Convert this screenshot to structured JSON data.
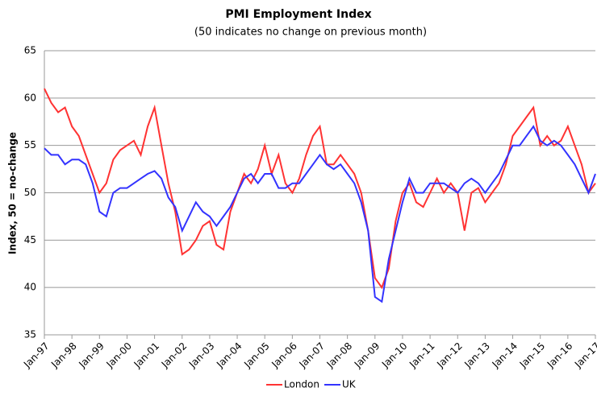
{
  "chart_data": {
    "type": "line",
    "title": "PMI Employment Index",
    "subtitle": "(50 indicates no change on previous month)",
    "y_label": "Index, 50 = no-change",
    "categories": [
      "Jan-97",
      null,
      null,
      null,
      "Jan-98",
      null,
      null,
      null,
      "Jan-99",
      null,
      null,
      null,
      "Jan-00",
      null,
      null,
      null,
      "Jan-01",
      null,
      null,
      null,
      "Jan-02",
      null,
      null,
      null,
      "Jan-03",
      null,
      null,
      null,
      "Jan-04",
      null,
      null,
      null,
      "Jan-05",
      null,
      null,
      null,
      "Jan-06",
      null,
      null,
      null,
      "Jan-07",
      null,
      null,
      null,
      "Jan-08",
      null,
      null,
      null,
      "Jan-09",
      null,
      null,
      null,
      "Jan-10",
      null,
      null,
      null,
      "Jan-11",
      null,
      null,
      null,
      "Jan-12",
      null,
      null,
      null,
      "Jan-13",
      null,
      null,
      null,
      "Jan-14",
      null,
      null,
      null,
      "Jan-15",
      null,
      null,
      null,
      "Jan-16",
      null,
      null,
      null,
      "Jan-17"
    ],
    "series": [
      {
        "name": "London",
        "color": "#ff3333",
        "values": [
          61,
          59.5,
          58.5,
          59,
          57,
          56,
          54,
          52,
          50,
          51,
          53.5,
          54.5,
          55,
          55.5,
          54,
          57,
          59,
          55,
          51,
          48,
          43.5,
          44,
          45,
          46.5,
          47,
          44.5,
          44,
          48,
          50,
          52,
          51,
          52.5,
          55,
          52,
          54,
          51,
          50,
          51.5,
          54,
          56,
          57,
          53,
          53,
          54,
          53,
          52,
          50,
          46,
          41,
          40,
          42,
          47,
          50,
          51,
          49,
          48.5,
          50,
          51.5,
          50,
          51,
          50,
          46,
          50,
          50.5,
          49,
          50,
          51,
          53,
          56,
          57,
          58,
          59,
          55,
          56,
          55,
          55.5,
          57,
          55,
          53,
          50,
          51
        ]
      },
      {
        "name": "UK",
        "color": "#3333ff",
        "values": [
          54.7,
          54,
          54,
          53,
          53.5,
          53.5,
          53,
          51,
          48,
          47.5,
          50,
          50.5,
          50.5,
          51,
          51.5,
          52,
          52.3,
          51.5,
          49.5,
          48.5,
          46,
          47.5,
          49,
          48,
          47.5,
          46.5,
          47.5,
          48.5,
          50,
          51.5,
          52,
          51,
          52,
          52,
          50.5,
          50.5,
          51,
          51,
          52,
          53,
          54,
          53,
          52.5,
          53,
          52,
          51,
          49,
          46,
          39,
          38.5,
          43,
          46,
          49,
          51.5,
          50,
          50,
          51,
          51,
          51,
          50.5,
          50,
          51,
          51.5,
          51,
          50,
          51,
          52,
          53.5,
          55,
          55,
          56,
          57,
          55.5,
          55,
          55.5,
          55,
          54,
          53,
          51.5,
          50,
          52
        ]
      }
    ],
    "ylim": [
      35,
      65
    ],
    "yticks": [
      35,
      40,
      45,
      50,
      55,
      60,
      65
    ],
    "grid": true,
    "legend": "bottom"
  }
}
